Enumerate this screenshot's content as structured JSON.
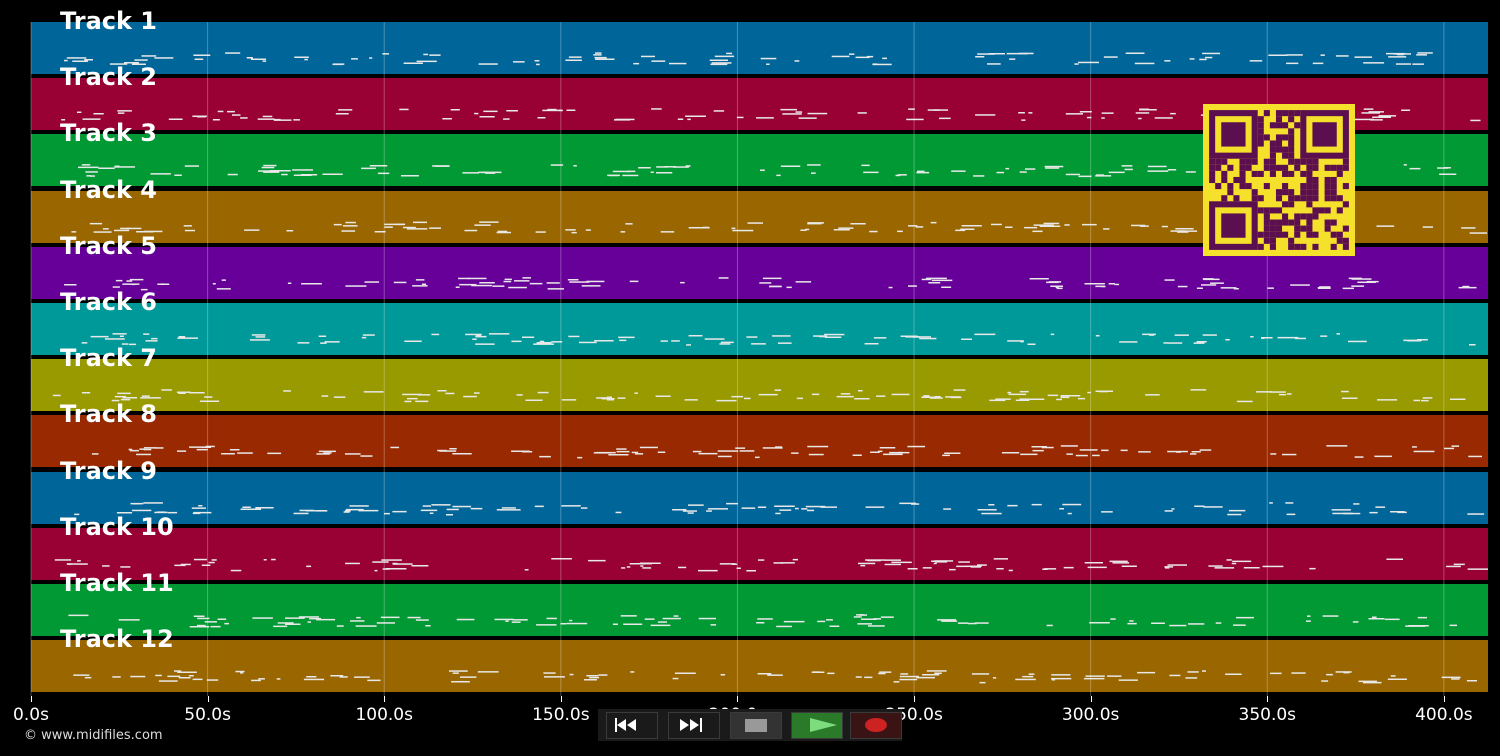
{
  "tracks": [
    {
      "label": "Track 1",
      "color": "#006699"
    },
    {
      "label": "Track 2",
      "color": "#990033"
    },
    {
      "label": "Track 3",
      "color": "#009933"
    },
    {
      "label": "Track 4",
      "color": "#996600"
    },
    {
      "label": "Track 5",
      "color": "#660099"
    },
    {
      "label": "Track 6",
      "color": "#009999"
    },
    {
      "label": "Track 7",
      "color": "#999900"
    },
    {
      "label": "Track 8",
      "color": "#992900"
    },
    {
      "label": "Track 9",
      "color": "#006699"
    },
    {
      "label": "Track 10",
      "color": "#990033"
    },
    {
      "label": "Track 11",
      "color": "#009933"
    },
    {
      "label": "Track 12",
      "color": "#996600"
    }
  ],
  "timeline": {
    "max_seconds": 412,
    "ticks": [
      "0.0s",
      "50.0s",
      "100.0s",
      "150.0s",
      "200.0s",
      "250.0s",
      "300.0s",
      "350.0s",
      "400.0s"
    ]
  },
  "copyright": "© www.midifiles.com",
  "transport": {
    "rewind_icon": "rewind-icon",
    "fast_forward_icon": "fast-forward-icon",
    "stop_icon": "stop-icon",
    "play_icon": "play-icon",
    "record_icon": "record-icon",
    "play_color": "#2a7a2a",
    "record_color": "#cc2222"
  },
  "qr_color": "#f5e12b"
}
